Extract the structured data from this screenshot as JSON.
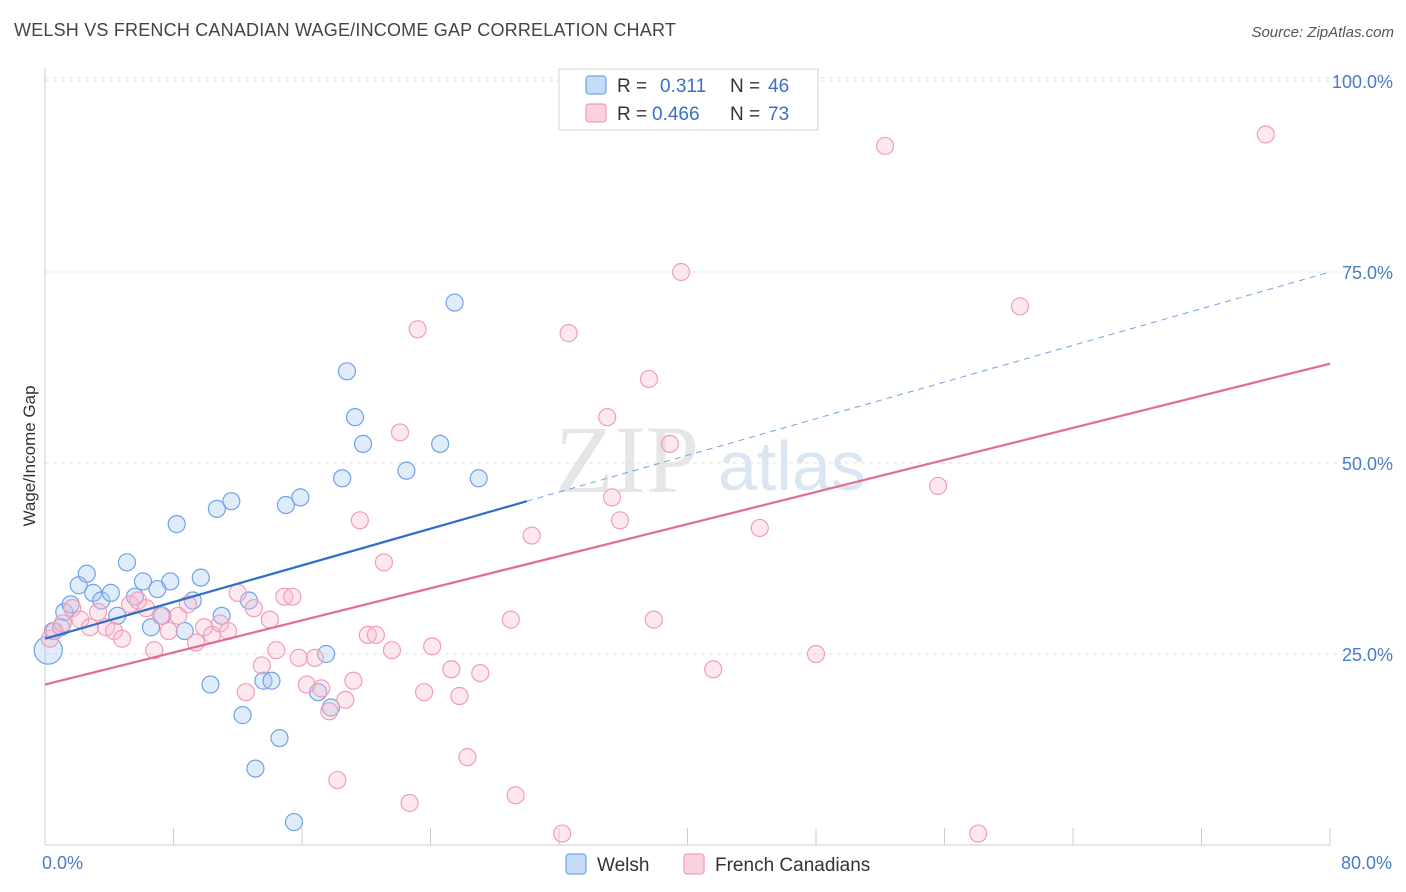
{
  "title": "WELSH VS FRENCH CANADIAN WAGE/INCOME GAP CORRELATION CHART",
  "source": "Source: ZipAtlas.com",
  "watermark": {
    "zip": "ZIP",
    "atlas": "atlas"
  },
  "chart_data": {
    "type": "scatter",
    "ylabel": "Wage/Income Gap",
    "xlim": [
      0,
      80
    ],
    "ylim": [
      0,
      105
    ],
    "x_tick_labels": [
      "0.0%",
      "80.0%"
    ],
    "y_ticks": [
      25,
      50,
      75,
      100
    ],
    "y_tick_labels": [
      "25.0%",
      "50.0%",
      "75.0%",
      "100.0%"
    ],
    "grid": true,
    "legend_position": "top-center",
    "stats": [
      {
        "r_label": "R =",
        "r_value": "0.311",
        "n_label": "N =",
        "n_value": "46"
      },
      {
        "r_label": "R =",
        "r_value": "0.466",
        "n_label": "N =",
        "n_value": "73"
      }
    ],
    "series": [
      {
        "name": "Welsh",
        "color": "#6fa3e6",
        "trend": {
          "x0": 0,
          "y0": 27,
          "x1": 30,
          "y1": 45,
          "dashed_to_x": 80,
          "dashed_to_y": 75
        },
        "points": [
          [
            0.2,
            25.5
          ],
          [
            0.5,
            28
          ],
          [
            1.0,
            28.5
          ],
          [
            1.2,
            30.5
          ],
          [
            1.6,
            31.5
          ],
          [
            2.1,
            34
          ],
          [
            2.6,
            35.5
          ],
          [
            3.0,
            33
          ],
          [
            3.5,
            32
          ],
          [
            4.1,
            33
          ],
          [
            4.5,
            30
          ],
          [
            5.1,
            37
          ],
          [
            5.6,
            32.5
          ],
          [
            6.1,
            34.5
          ],
          [
            6.6,
            28.5
          ],
          [
            7.0,
            33.5
          ],
          [
            7.3,
            30
          ],
          [
            7.8,
            34.5
          ],
          [
            8.2,
            42
          ],
          [
            8.7,
            28
          ],
          [
            9.2,
            32
          ],
          [
            9.7,
            35
          ],
          [
            10.3,
            21
          ],
          [
            10.7,
            44
          ],
          [
            11.0,
            30
          ],
          [
            11.6,
            45
          ],
          [
            12.3,
            17
          ],
          [
            12.7,
            32
          ],
          [
            13.1,
            10
          ],
          [
            13.6,
            21.5
          ],
          [
            14.1,
            21.5
          ],
          [
            14.6,
            14
          ],
          [
            15.0,
            44.5
          ],
          [
            15.5,
            3
          ],
          [
            15.9,
            45.5
          ],
          [
            17.0,
            20
          ],
          [
            17.5,
            25
          ],
          [
            17.8,
            18
          ],
          [
            18.5,
            48
          ],
          [
            18.8,
            62
          ],
          [
            19.3,
            56
          ],
          [
            19.8,
            52.5
          ],
          [
            22.5,
            49
          ],
          [
            24.6,
            52.5
          ],
          [
            25.5,
            71
          ],
          [
            27.0,
            48
          ]
        ]
      },
      {
        "name": "French Canadians",
        "color": "#f29db8",
        "trend": {
          "x0": 0,
          "y0": 21,
          "x1": 80,
          "y1": 63
        },
        "points": [
          [
            0.3,
            27
          ],
          [
            0.6,
            28
          ],
          [
            1.1,
            29
          ],
          [
            1.7,
            31
          ],
          [
            2.2,
            29.5
          ],
          [
            2.8,
            28.5
          ],
          [
            3.3,
            30.5
          ],
          [
            3.8,
            28.5
          ],
          [
            4.3,
            28
          ],
          [
            4.8,
            27
          ],
          [
            5.3,
            31.5
          ],
          [
            5.8,
            32
          ],
          [
            6.3,
            31
          ],
          [
            6.8,
            25.5
          ],
          [
            7.2,
            30
          ],
          [
            7.7,
            28
          ],
          [
            8.3,
            30
          ],
          [
            8.9,
            31.5
          ],
          [
            9.4,
            26.5
          ],
          [
            9.9,
            28.5
          ],
          [
            10.4,
            27.5
          ],
          [
            10.9,
            29
          ],
          [
            11.4,
            28
          ],
          [
            12.0,
            33
          ],
          [
            12.5,
            20
          ],
          [
            13.0,
            31
          ],
          [
            13.5,
            23.5
          ],
          [
            14.0,
            29.5
          ],
          [
            14.4,
            25.5
          ],
          [
            14.9,
            32.5
          ],
          [
            15.4,
            32.5
          ],
          [
            15.8,
            24.5
          ],
          [
            16.3,
            21
          ],
          [
            16.8,
            24.5
          ],
          [
            17.2,
            20.5
          ],
          [
            17.7,
            17.5
          ],
          [
            18.2,
            8.5
          ],
          [
            18.7,
            19
          ],
          [
            19.2,
            21.5
          ],
          [
            19.6,
            42.5
          ],
          [
            20.1,
            27.5
          ],
          [
            20.6,
            27.5
          ],
          [
            21.1,
            37
          ],
          [
            21.6,
            25.5
          ],
          [
            22.1,
            54
          ],
          [
            22.7,
            5.5
          ],
          [
            23.2,
            67.5
          ],
          [
            23.6,
            20
          ],
          [
            24.1,
            26
          ],
          [
            25.3,
            23
          ],
          [
            25.8,
            19.5
          ],
          [
            26.3,
            11.5
          ],
          [
            27.1,
            22.5
          ],
          [
            29.0,
            29.5
          ],
          [
            29.3,
            6.5
          ],
          [
            30.3,
            40.5
          ],
          [
            32.2,
            1.5
          ],
          [
            32.6,
            67
          ],
          [
            35.0,
            56
          ],
          [
            35.3,
            45.5
          ],
          [
            35.8,
            42.5
          ],
          [
            37.6,
            61
          ],
          [
            37.9,
            29.5
          ],
          [
            38.9,
            52.5
          ],
          [
            39.6,
            75
          ],
          [
            41.6,
            23
          ],
          [
            44.5,
            41.5
          ],
          [
            48.0,
            25
          ],
          [
            52.3,
            91.5
          ],
          [
            55.6,
            47
          ],
          [
            58.1,
            1.5
          ],
          [
            60.7,
            70.5
          ],
          [
            76.0,
            93
          ]
        ]
      }
    ]
  }
}
